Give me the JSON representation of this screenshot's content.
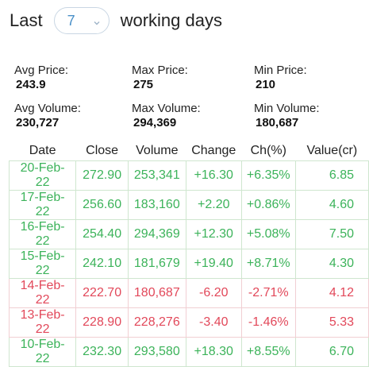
{
  "header": {
    "prefix": "Last",
    "selected_days": "7",
    "suffix": "working days"
  },
  "stats": {
    "avg_price_label": "Avg Price:",
    "avg_price": "243.9",
    "max_price_label": "Max Price:",
    "max_price": "275",
    "min_price_label": "Min Price:",
    "min_price": "210",
    "avg_volume_label": "Avg Volume:",
    "avg_volume": "230,727",
    "max_volume_label": "Max Volume:",
    "max_volume": "294,369",
    "min_volume_label": "Min Volume:",
    "min_volume": "180,687"
  },
  "table": {
    "headers": [
      "Date",
      "Close",
      "Volume",
      "Change",
      "Ch(%)",
      "Value(cr)"
    ],
    "rows": [
      {
        "trend": "up",
        "cells": [
          "20-Feb-22",
          "272.90",
          "253,341",
          "+16.30",
          "+6.35%",
          "6.85"
        ]
      },
      {
        "trend": "up",
        "cells": [
          "17-Feb-22",
          "256.60",
          "183,160",
          "+2.20",
          "+0.86%",
          "4.60"
        ]
      },
      {
        "trend": "up",
        "cells": [
          "16-Feb-22",
          "254.40",
          "294,369",
          "+12.30",
          "+5.08%",
          "7.50"
        ]
      },
      {
        "trend": "up",
        "cells": [
          "15-Feb-22",
          "242.10",
          "181,679",
          "+19.40",
          "+8.71%",
          "4.30"
        ]
      },
      {
        "trend": "down",
        "cells": [
          "14-Feb-22",
          "222.70",
          "180,687",
          "-6.20",
          "-2.71%",
          "4.12"
        ]
      },
      {
        "trend": "down",
        "cells": [
          "13-Feb-22",
          "228.90",
          "228,276",
          "-3.40",
          "-1.46%",
          "5.33"
        ]
      },
      {
        "trend": "up",
        "cells": [
          "10-Feb-22",
          "232.30",
          "293,580",
          "+18.30",
          "+8.55%",
          "6.70"
        ]
      }
    ]
  },
  "colors": {
    "up": "#3cb35a",
    "down": "#e2485a",
    "accent": "#4a90c8"
  },
  "icons": {
    "dropdown": "chevron-down-icon"
  }
}
